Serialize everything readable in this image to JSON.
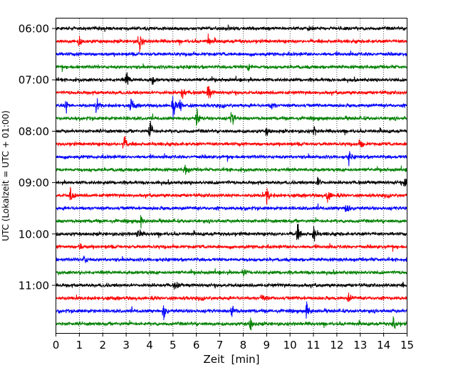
{
  "chart_data": {
    "type": "line",
    "subtype": "helicorder",
    "xlabel": "Zeit  [min]",
    "ylabel": "UTC (Lokalzeit = UTC + 01:00)",
    "xlim": [
      0,
      15
    ],
    "xticks": [
      "0",
      "1",
      "2",
      "3",
      "4",
      "5",
      "6",
      "7",
      "8",
      "9",
      "10",
      "11",
      "12",
      "13",
      "14",
      "15"
    ],
    "yticks": [
      {
        "label": "06:00",
        "row": 0
      },
      {
        "label": "07:00",
        "row": 4
      },
      {
        "label": "08:00",
        "row": 8
      },
      {
        "label": "09:00",
        "row": 12
      },
      {
        "label": "10:00",
        "row": 16
      },
      {
        "label": "11:00",
        "row": 20
      }
    ],
    "row_minutes": 15,
    "row_count": 24,
    "start_time": "06:00",
    "grid": "vertical dotted at each minute",
    "colors": [
      "#000000",
      "#ff0000",
      "#0000ff",
      "#008000"
    ],
    "baseline_noise": 0.12,
    "events": [
      {
        "row": 0,
        "minute": 10.8,
        "amp": 0.3
      },
      {
        "row": 1,
        "minute": 1.0,
        "amp": 0.5
      },
      {
        "row": 1,
        "minute": 3.55,
        "amp": 1.0
      },
      {
        "row": 1,
        "minute": 6.5,
        "amp": 0.5
      },
      {
        "row": 3,
        "minute": 8.2,
        "amp": 0.4
      },
      {
        "row": 4,
        "minute": 3.0,
        "amp": 0.7
      },
      {
        "row": 4,
        "minute": 4.1,
        "amp": 0.5
      },
      {
        "row": 5,
        "minute": 5.4,
        "amp": 0.5
      },
      {
        "row": 5,
        "minute": 6.5,
        "amp": 0.8
      },
      {
        "row": 6,
        "minute": 0.4,
        "amp": 0.6
      },
      {
        "row": 6,
        "minute": 1.7,
        "amp": 0.7
      },
      {
        "row": 6,
        "minute": 3.2,
        "amp": 0.6
      },
      {
        "row": 6,
        "minute": 5.0,
        "amp": 0.9
      },
      {
        "row": 6,
        "minute": 5.3,
        "amp": 0.6
      },
      {
        "row": 6,
        "minute": 9.2,
        "amp": 0.4
      },
      {
        "row": 7,
        "minute": 6.0,
        "amp": 0.8
      },
      {
        "row": 7,
        "minute": 7.5,
        "amp": 0.8
      },
      {
        "row": 8,
        "minute": 4.0,
        "amp": 0.9
      },
      {
        "row": 8,
        "minute": 9.0,
        "amp": 0.4
      },
      {
        "row": 8,
        "minute": 11.0,
        "amp": 0.4
      },
      {
        "row": 9,
        "minute": 2.9,
        "amp": 0.7
      },
      {
        "row": 9,
        "minute": 13.0,
        "amp": 0.5
      },
      {
        "row": 10,
        "minute": 12.5,
        "amp": 0.5
      },
      {
        "row": 11,
        "minute": 5.5,
        "amp": 0.5
      },
      {
        "row": 12,
        "minute": 11.2,
        "amp": 0.6
      },
      {
        "row": 12,
        "minute": 14.9,
        "amp": 0.6
      },
      {
        "row": 13,
        "minute": 0.6,
        "amp": 0.7
      },
      {
        "row": 13,
        "minute": 9.0,
        "amp": 0.8
      },
      {
        "row": 13,
        "minute": 11.6,
        "amp": 0.7
      },
      {
        "row": 14,
        "minute": 12.4,
        "amp": 0.8
      },
      {
        "row": 15,
        "minute": 3.6,
        "amp": 0.5
      },
      {
        "row": 16,
        "minute": 3.5,
        "amp": 0.6
      },
      {
        "row": 16,
        "minute": 10.3,
        "amp": 0.8
      },
      {
        "row": 16,
        "minute": 11.0,
        "amp": 0.7
      },
      {
        "row": 17,
        "minute": 1.0,
        "amp": 0.4
      },
      {
        "row": 18,
        "minute": 1.2,
        "amp": 0.4
      },
      {
        "row": 19,
        "minute": 8.0,
        "amp": 0.4
      },
      {
        "row": 20,
        "minute": 5.1,
        "amp": 0.4
      },
      {
        "row": 20,
        "minute": 14.8,
        "amp": 0.3
      },
      {
        "row": 21,
        "minute": 8.8,
        "amp": 0.5
      },
      {
        "row": 21,
        "minute": 12.5,
        "amp": 0.4
      },
      {
        "row": 22,
        "minute": 4.6,
        "amp": 0.9
      },
      {
        "row": 22,
        "minute": 7.5,
        "amp": 0.7
      },
      {
        "row": 22,
        "minute": 10.7,
        "amp": 0.9
      },
      {
        "row": 23,
        "minute": 8.3,
        "amp": 0.7
      },
      {
        "row": 23,
        "minute": 14.4,
        "amp": 0.9
      }
    ]
  }
}
